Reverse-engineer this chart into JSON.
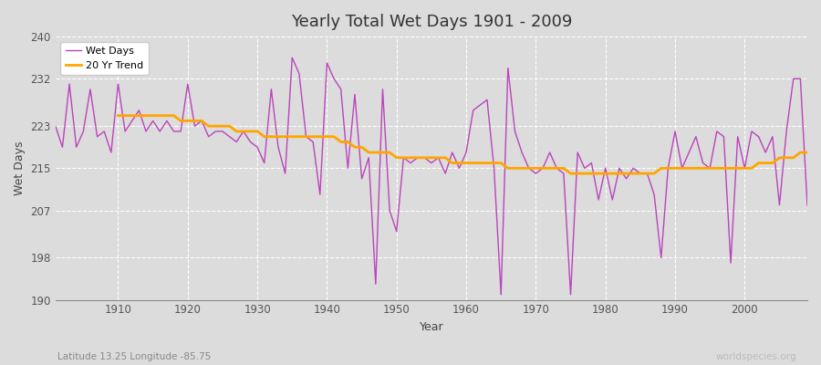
{
  "title": "Yearly Total Wet Days 1901 - 2009",
  "xlabel": "Year",
  "ylabel": "Wet Days",
  "subtitle_left": "Latitude 13.25 Longitude -85.75",
  "subtitle_right": "worldspecies.org",
  "wet_days_color": "#BB44BB",
  "trend_color": "#FFA500",
  "bg_color": "#DCDCDC",
  "ylim": [
    190,
    240
  ],
  "yticks": [
    190,
    198,
    207,
    215,
    223,
    232,
    240
  ],
  "xlim": [
    1901,
    2009
  ],
  "years": [
    1901,
    1902,
    1903,
    1904,
    1905,
    1906,
    1907,
    1908,
    1909,
    1910,
    1911,
    1912,
    1913,
    1914,
    1915,
    1916,
    1917,
    1918,
    1919,
    1920,
    1921,
    1922,
    1923,
    1924,
    1925,
    1926,
    1927,
    1928,
    1929,
    1930,
    1931,
    1932,
    1933,
    1934,
    1935,
    1936,
    1937,
    1938,
    1939,
    1940,
    1941,
    1942,
    1943,
    1944,
    1945,
    1946,
    1947,
    1948,
    1949,
    1950,
    1951,
    1952,
    1953,
    1954,
    1955,
    1956,
    1957,
    1958,
    1959,
    1960,
    1961,
    1962,
    1963,
    1964,
    1965,
    1966,
    1967,
    1968,
    1969,
    1970,
    1971,
    1972,
    1973,
    1974,
    1975,
    1976,
    1977,
    1978,
    1979,
    1980,
    1981,
    1982,
    1983,
    1984,
    1985,
    1986,
    1987,
    1988,
    1989,
    1990,
    1991,
    1992,
    1993,
    1994,
    1995,
    1996,
    1997,
    1998,
    1999,
    2000,
    2001,
    2002,
    2003,
    2004,
    2005,
    2006,
    2007,
    2008,
    2009
  ],
  "wet_days": [
    223,
    219,
    231,
    219,
    222,
    230,
    221,
    222,
    218,
    231,
    222,
    224,
    226,
    222,
    224,
    222,
    224,
    222,
    222,
    231,
    223,
    224,
    221,
    222,
    222,
    221,
    220,
    222,
    220,
    219,
    216,
    230,
    219,
    214,
    236,
    233,
    221,
    220,
    210,
    235,
    232,
    230,
    215,
    229,
    213,
    217,
    193,
    230,
    207,
    203,
    217,
    216,
    217,
    217,
    216,
    217,
    214,
    218,
    215,
    218,
    226,
    227,
    228,
    215,
    191,
    234,
    222,
    218,
    215,
    214,
    215,
    218,
    215,
    214,
    191,
    218,
    215,
    216,
    209,
    215,
    209,
    215,
    213,
    215,
    214,
    214,
    210,
    198,
    215,
    222,
    215,
    218,
    221,
    216,
    215,
    222,
    221,
    197,
    221,
    215,
    222,
    221,
    218,
    221,
    208,
    222,
    232,
    232,
    208
  ],
  "trend": [
    null,
    null,
    null,
    null,
    null,
    null,
    null,
    null,
    null,
    225,
    225,
    225,
    225,
    225,
    225,
    225,
    225,
    225,
    224,
    224,
    224,
    224,
    223,
    223,
    223,
    223,
    222,
    222,
    222,
    222,
    221,
    221,
    221,
    221,
    221,
    221,
    221,
    221,
    221,
    221,
    221,
    220,
    220,
    219,
    219,
    218,
    218,
    218,
    218,
    217,
    217,
    217,
    217,
    217,
    217,
    217,
    217,
    216,
    216,
    216,
    216,
    216,
    216,
    216,
    216,
    215,
    215,
    215,
    215,
    215,
    215,
    215,
    215,
    215,
    214,
    214,
    214,
    214,
    214,
    214,
    214,
    214,
    214,
    214,
    214,
    214,
    214,
    215,
    215,
    215,
    215,
    215,
    215,
    215,
    215,
    215,
    215,
    215,
    215,
    215,
    215,
    216,
    216,
    216,
    217,
    217,
    217,
    218,
    218
  ]
}
